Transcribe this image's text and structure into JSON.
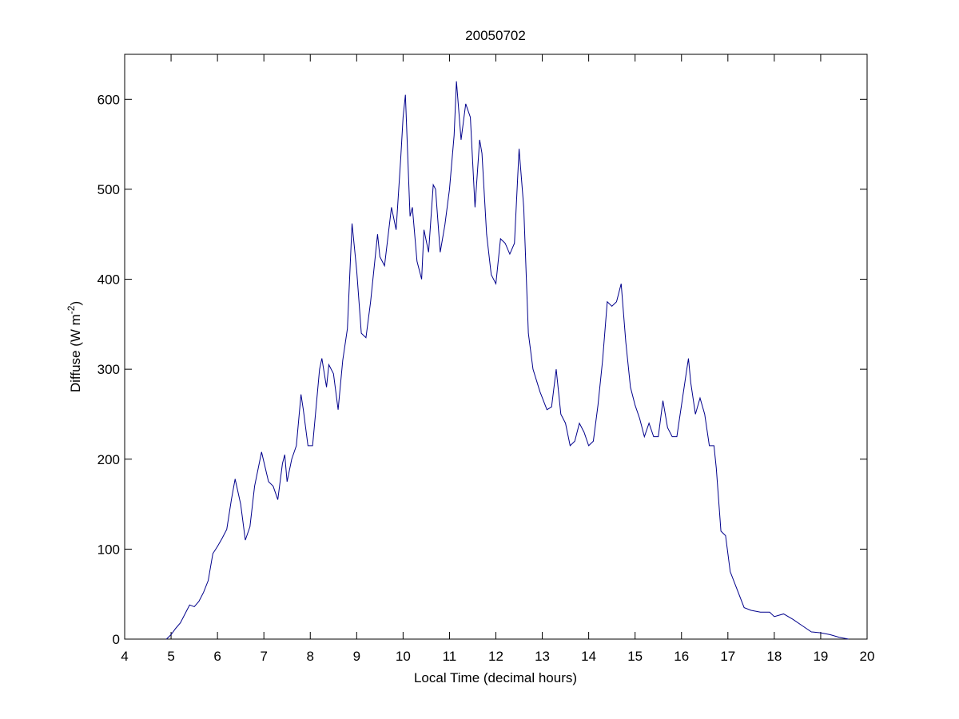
{
  "chart_data": {
    "type": "line",
    "title": "20050702",
    "xlabel": "Local Time (decimal hours)",
    "ylabel": [
      "Diffuse (W m",
      "-2",
      ")"
    ],
    "xlim": [
      4,
      20
    ],
    "xticks": [
      4,
      5,
      6,
      7,
      8,
      9,
      10,
      11,
      12,
      13,
      14,
      15,
      16,
      17,
      18,
      19,
      20
    ],
    "ylim": [
      0,
      650
    ],
    "yticks": [
      0,
      100,
      200,
      300,
      400,
      500,
      600
    ],
    "grid": false,
    "series": [
      {
        "color": "#00008b",
        "x": [
          4.9,
          5.0,
          5.1,
          5.2,
          5.3,
          5.4,
          5.5,
          5.6,
          5.7,
          5.8,
          5.9,
          6.0,
          6.1,
          6.2,
          6.3,
          6.38,
          6.5,
          6.6,
          6.7,
          6.8,
          6.95,
          7.1,
          7.2,
          7.3,
          7.4,
          7.45,
          7.5,
          7.6,
          7.7,
          7.8,
          7.85,
          7.95,
          8.05,
          8.2,
          8.25,
          8.35,
          8.4,
          8.5,
          8.6,
          8.7,
          8.8,
          8.9,
          9.0,
          9.1,
          9.2,
          9.3,
          9.45,
          9.5,
          9.6,
          9.75,
          9.85,
          9.95,
          10.0,
          10.05,
          10.15,
          10.2,
          10.3,
          10.4,
          10.45,
          10.55,
          10.65,
          10.7,
          10.8,
          10.9,
          11.0,
          11.1,
          11.15,
          11.25,
          11.35,
          11.45,
          11.55,
          11.65,
          11.7,
          11.8,
          11.9,
          12.0,
          12.1,
          12.2,
          12.3,
          12.4,
          12.5,
          12.6,
          12.7,
          12.8,
          12.95,
          13.1,
          13.2,
          13.3,
          13.4,
          13.5,
          13.6,
          13.7,
          13.8,
          13.9,
          14.0,
          14.1,
          14.2,
          14.3,
          14.4,
          14.5,
          14.6,
          14.7,
          14.8,
          14.9,
          15.0,
          15.1,
          15.2,
          15.3,
          15.4,
          15.5,
          15.6,
          15.7,
          15.8,
          15.9,
          16.0,
          16.1,
          16.15,
          16.2,
          16.3,
          16.4,
          16.5,
          16.6,
          16.7,
          16.75,
          16.85,
          16.95,
          17.05,
          17.2,
          17.35,
          17.5,
          17.7,
          17.9,
          18.0,
          18.2,
          18.4,
          18.6,
          18.8,
          19.0,
          19.2,
          19.4,
          19.6
        ],
        "values": [
          0,
          5,
          12,
          18,
          28,
          38,
          36,
          42,
          52,
          65,
          95,
          103,
          112,
          122,
          155,
          178,
          150,
          110,
          125,
          170,
          208,
          175,
          170,
          155,
          195,
          205,
          175,
          200,
          215,
          272,
          255,
          215,
          215,
          300,
          312,
          280,
          305,
          295,
          255,
          310,
          345,
          462,
          410,
          340,
          335,
          375,
          450,
          425,
          415,
          480,
          455,
          535,
          580,
          605,
          470,
          480,
          420,
          400,
          455,
          430,
          505,
          500,
          430,
          460,
          500,
          560,
          620,
          555,
          595,
          580,
          480,
          555,
          540,
          450,
          405,
          395,
          445,
          440,
          428,
          440,
          545,
          480,
          340,
          300,
          275,
          255,
          258,
          300,
          250,
          240,
          215,
          220,
          240,
          230,
          215,
          220,
          260,
          310,
          375,
          370,
          375,
          395,
          330,
          280,
          260,
          245,
          225,
          240,
          225,
          225,
          265,
          235,
          225,
          225,
          260,
          295,
          312,
          285,
          250,
          268,
          250,
          215,
          215,
          190,
          120,
          115,
          75,
          55,
          35,
          32,
          30,
          30,
          25,
          28,
          22,
          15,
          8,
          7,
          5,
          2,
          0
        ]
      }
    ]
  }
}
